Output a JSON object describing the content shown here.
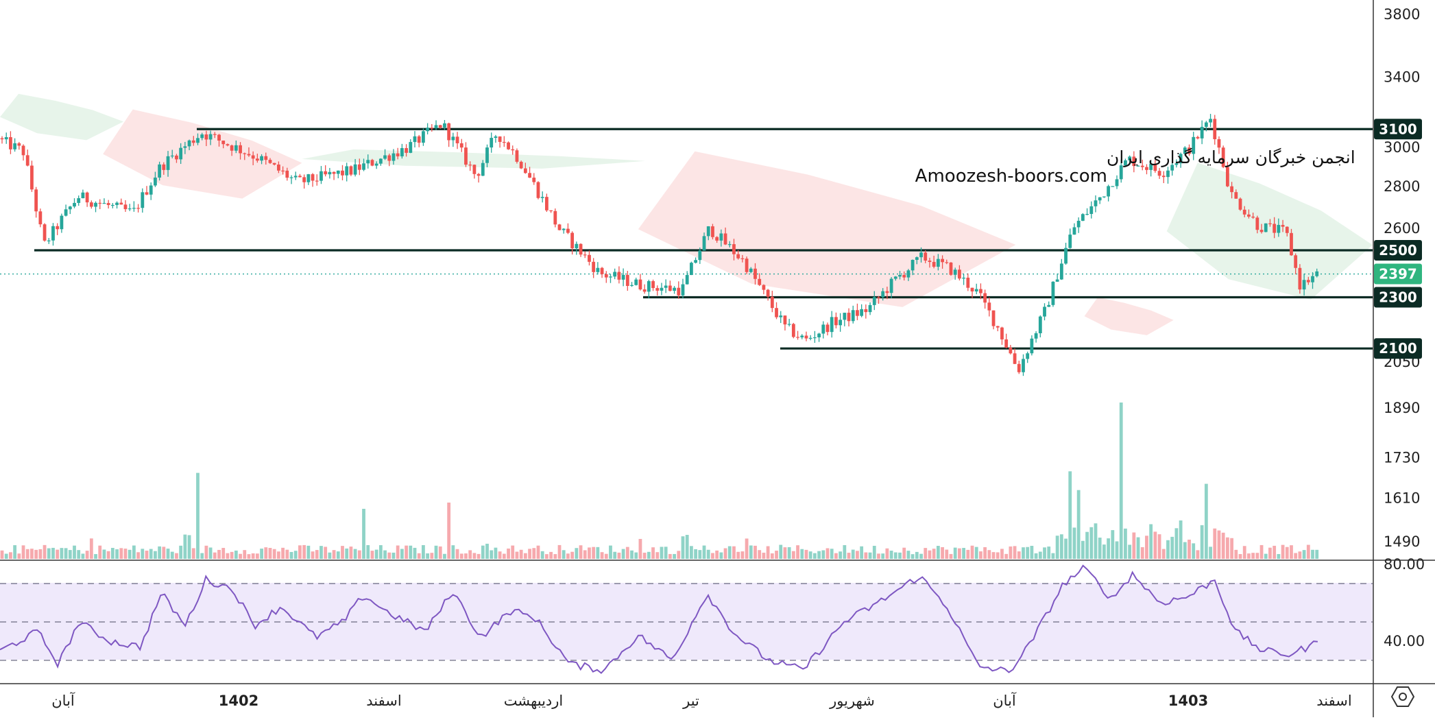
{
  "watermark": {
    "line1": "انجمن خبرگان سرمایه گذاری ایران",
    "line2": "Amoozesh-boors.com"
  },
  "colors": {
    "up": "#26a69a",
    "down": "#ef5350",
    "level_line": "#0b2b24",
    "rsi_line": "#7e57c2",
    "rsi_band": "#efe9fb",
    "cloud_up": "#e3f2e6",
    "cloud_down": "#fbe1e1",
    "vol_up": "#8fd3c7",
    "vol_down": "#f6a9ad"
  },
  "chart_data": {
    "type": "candlestick",
    "price_axis": {
      "ticks": [
        3800,
        3400,
        3000,
        2800,
        2600,
        2050,
        1890,
        1730,
        1610,
        1490
      ],
      "scale": "logarithmic",
      "range": [
        1390,
        3900
      ]
    },
    "horizontal_levels": [
      {
        "value": 3100,
        "label": "3100",
        "from_month": "1402"
      },
      {
        "value": 2500,
        "label": "2500",
        "from_month": "آبان"
      },
      {
        "value": 2300,
        "label": "2300",
        "from_month": "تیر"
      },
      {
        "value": 2100,
        "label": "2100",
        "from_month": "شهریور"
      }
    ],
    "last_price": {
      "value": 2397,
      "label": "2397"
    },
    "time_axis": [
      {
        "label": "آبان",
        "bold": false
      },
      {
        "label": "1402",
        "bold": true
      },
      {
        "label": "اسفند",
        "bold": false
      },
      {
        "label": "اردیبهشت",
        "bold": false
      },
      {
        "label": "تیر",
        "bold": false
      },
      {
        "label": "شهریور",
        "bold": false
      },
      {
        "label": "آبان",
        "bold": false
      },
      {
        "label": "1403",
        "bold": true
      },
      {
        "label": "اسفند",
        "bold": false
      }
    ],
    "price_path": [
      [
        0,
        3050
      ],
      [
        40,
        2980
      ],
      [
        70,
        2520
      ],
      [
        120,
        2750
      ],
      [
        200,
        2670
      ],
      [
        240,
        2900
      ],
      [
        300,
        3080
      ],
      [
        380,
        2950
      ],
      [
        440,
        2820
      ],
      [
        520,
        2880
      ],
      [
        600,
        3000
      ],
      [
        650,
        3130
      ],
      [
        700,
        2850
      ],
      [
        730,
        3080
      ],
      [
        760,
        2950
      ],
      [
        820,
        2600
      ],
      [
        880,
        2400
      ],
      [
        940,
        2350
      ],
      [
        1000,
        2330
      ],
      [
        1040,
        2600
      ],
      [
        1090,
        2450
      ],
      [
        1120,
        2310
      ],
      [
        1150,
        2180
      ],
      [
        1180,
        2130
      ],
      [
        1220,
        2200
      ],
      [
        1270,
        2250
      ],
      [
        1310,
        2370
      ],
      [
        1350,
        2470
      ],
      [
        1390,
        2420
      ],
      [
        1430,
        2320
      ],
      [
        1460,
        2180
      ],
      [
        1490,
        2020
      ],
      [
        1530,
        2250
      ],
      [
        1570,
        2600
      ],
      [
        1610,
        2750
      ],
      [
        1650,
        2940
      ],
      [
        1700,
        2870
      ],
      [
        1740,
        3000
      ],
      [
        1770,
        3160
      ],
      [
        1800,
        2760
      ],
      [
        1840,
        2610
      ],
      [
        1880,
        2580
      ],
      [
        1900,
        2350
      ],
      [
        1928,
        2397
      ]
    ],
    "ichimoku_cloud": [
      {
        "kind": "bullish",
        "from": 0,
        "to": 180,
        "top": 3300,
        "bottom": 3040
      },
      {
        "kind": "bearish",
        "from": 150,
        "to": 440,
        "top": 3210,
        "bottom": 2740
      },
      {
        "kind": "bullish",
        "from": 440,
        "to": 940,
        "top": 2990,
        "bottom": 2890
      },
      {
        "kind": "bearish",
        "from": 930,
        "to": 1480,
        "top": 2980,
        "bottom": 2260
      },
      {
        "kind": "bullish",
        "from": 1700,
        "to": 2000,
        "top": 2920,
        "bottom": 2290
      },
      {
        "kind": "bearish",
        "from": 1580,
        "to": 1710,
        "top": 2300,
        "bottom": 2150
      }
    ],
    "rsi": {
      "axis_ticks": [
        80.0,
        40.0
      ],
      "levels": [
        70,
        50,
        30
      ],
      "path": [
        [
          0,
          35
        ],
        [
          55,
          45
        ],
        [
          85,
          28
        ],
        [
          115,
          50
        ],
        [
          160,
          40
        ],
        [
          205,
          37
        ],
        [
          235,
          65
        ],
        [
          270,
          48
        ],
        [
          300,
          72
        ],
        [
          340,
          67
        ],
        [
          370,
          48
        ],
        [
          410,
          58
        ],
        [
          460,
          42
        ],
        [
          500,
          50
        ],
        [
          530,
          64
        ],
        [
          565,
          55
        ],
        [
          620,
          45
        ],
        [
          660,
          66
        ],
        [
          700,
          42
        ],
        [
          745,
          56
        ],
        [
          780,
          52
        ],
        [
          830,
          28
        ],
        [
          880,
          25
        ],
        [
          930,
          43
        ],
        [
          980,
          30
        ],
        [
          1030,
          65
        ],
        [
          1070,
          44
        ],
        [
          1120,
          30
        ],
        [
          1170,
          25
        ],
        [
          1230,
          50
        ],
        [
          1280,
          60
        ],
        [
          1340,
          74
        ],
        [
          1380,
          58
        ],
        [
          1425,
          27
        ],
        [
          1470,
          24
        ],
        [
          1500,
          38
        ],
        [
          1550,
          70
        ],
        [
          1580,
          78
        ],
        [
          1620,
          62
        ],
        [
          1650,
          75
        ],
        [
          1690,
          60
        ],
        [
          1730,
          63
        ],
        [
          1770,
          72
        ],
        [
          1800,
          45
        ],
        [
          1840,
          35
        ],
        [
          1880,
          33
        ],
        [
          1925,
          40
        ]
      ]
    },
    "volume": {
      "unit": "relative",
      "spikes": [
        {
          "at": 287,
          "value": 0.55
        },
        {
          "at": 530,
          "value": 0.32
        },
        {
          "at": 655,
          "value": 0.36
        },
        {
          "at": 1563,
          "value": 0.56
        },
        {
          "at": 1575,
          "value": 0.44
        },
        {
          "at": 1635,
          "value": 1.0
        },
        {
          "at": 1762,
          "value": 0.48
        }
      ]
    }
  }
}
